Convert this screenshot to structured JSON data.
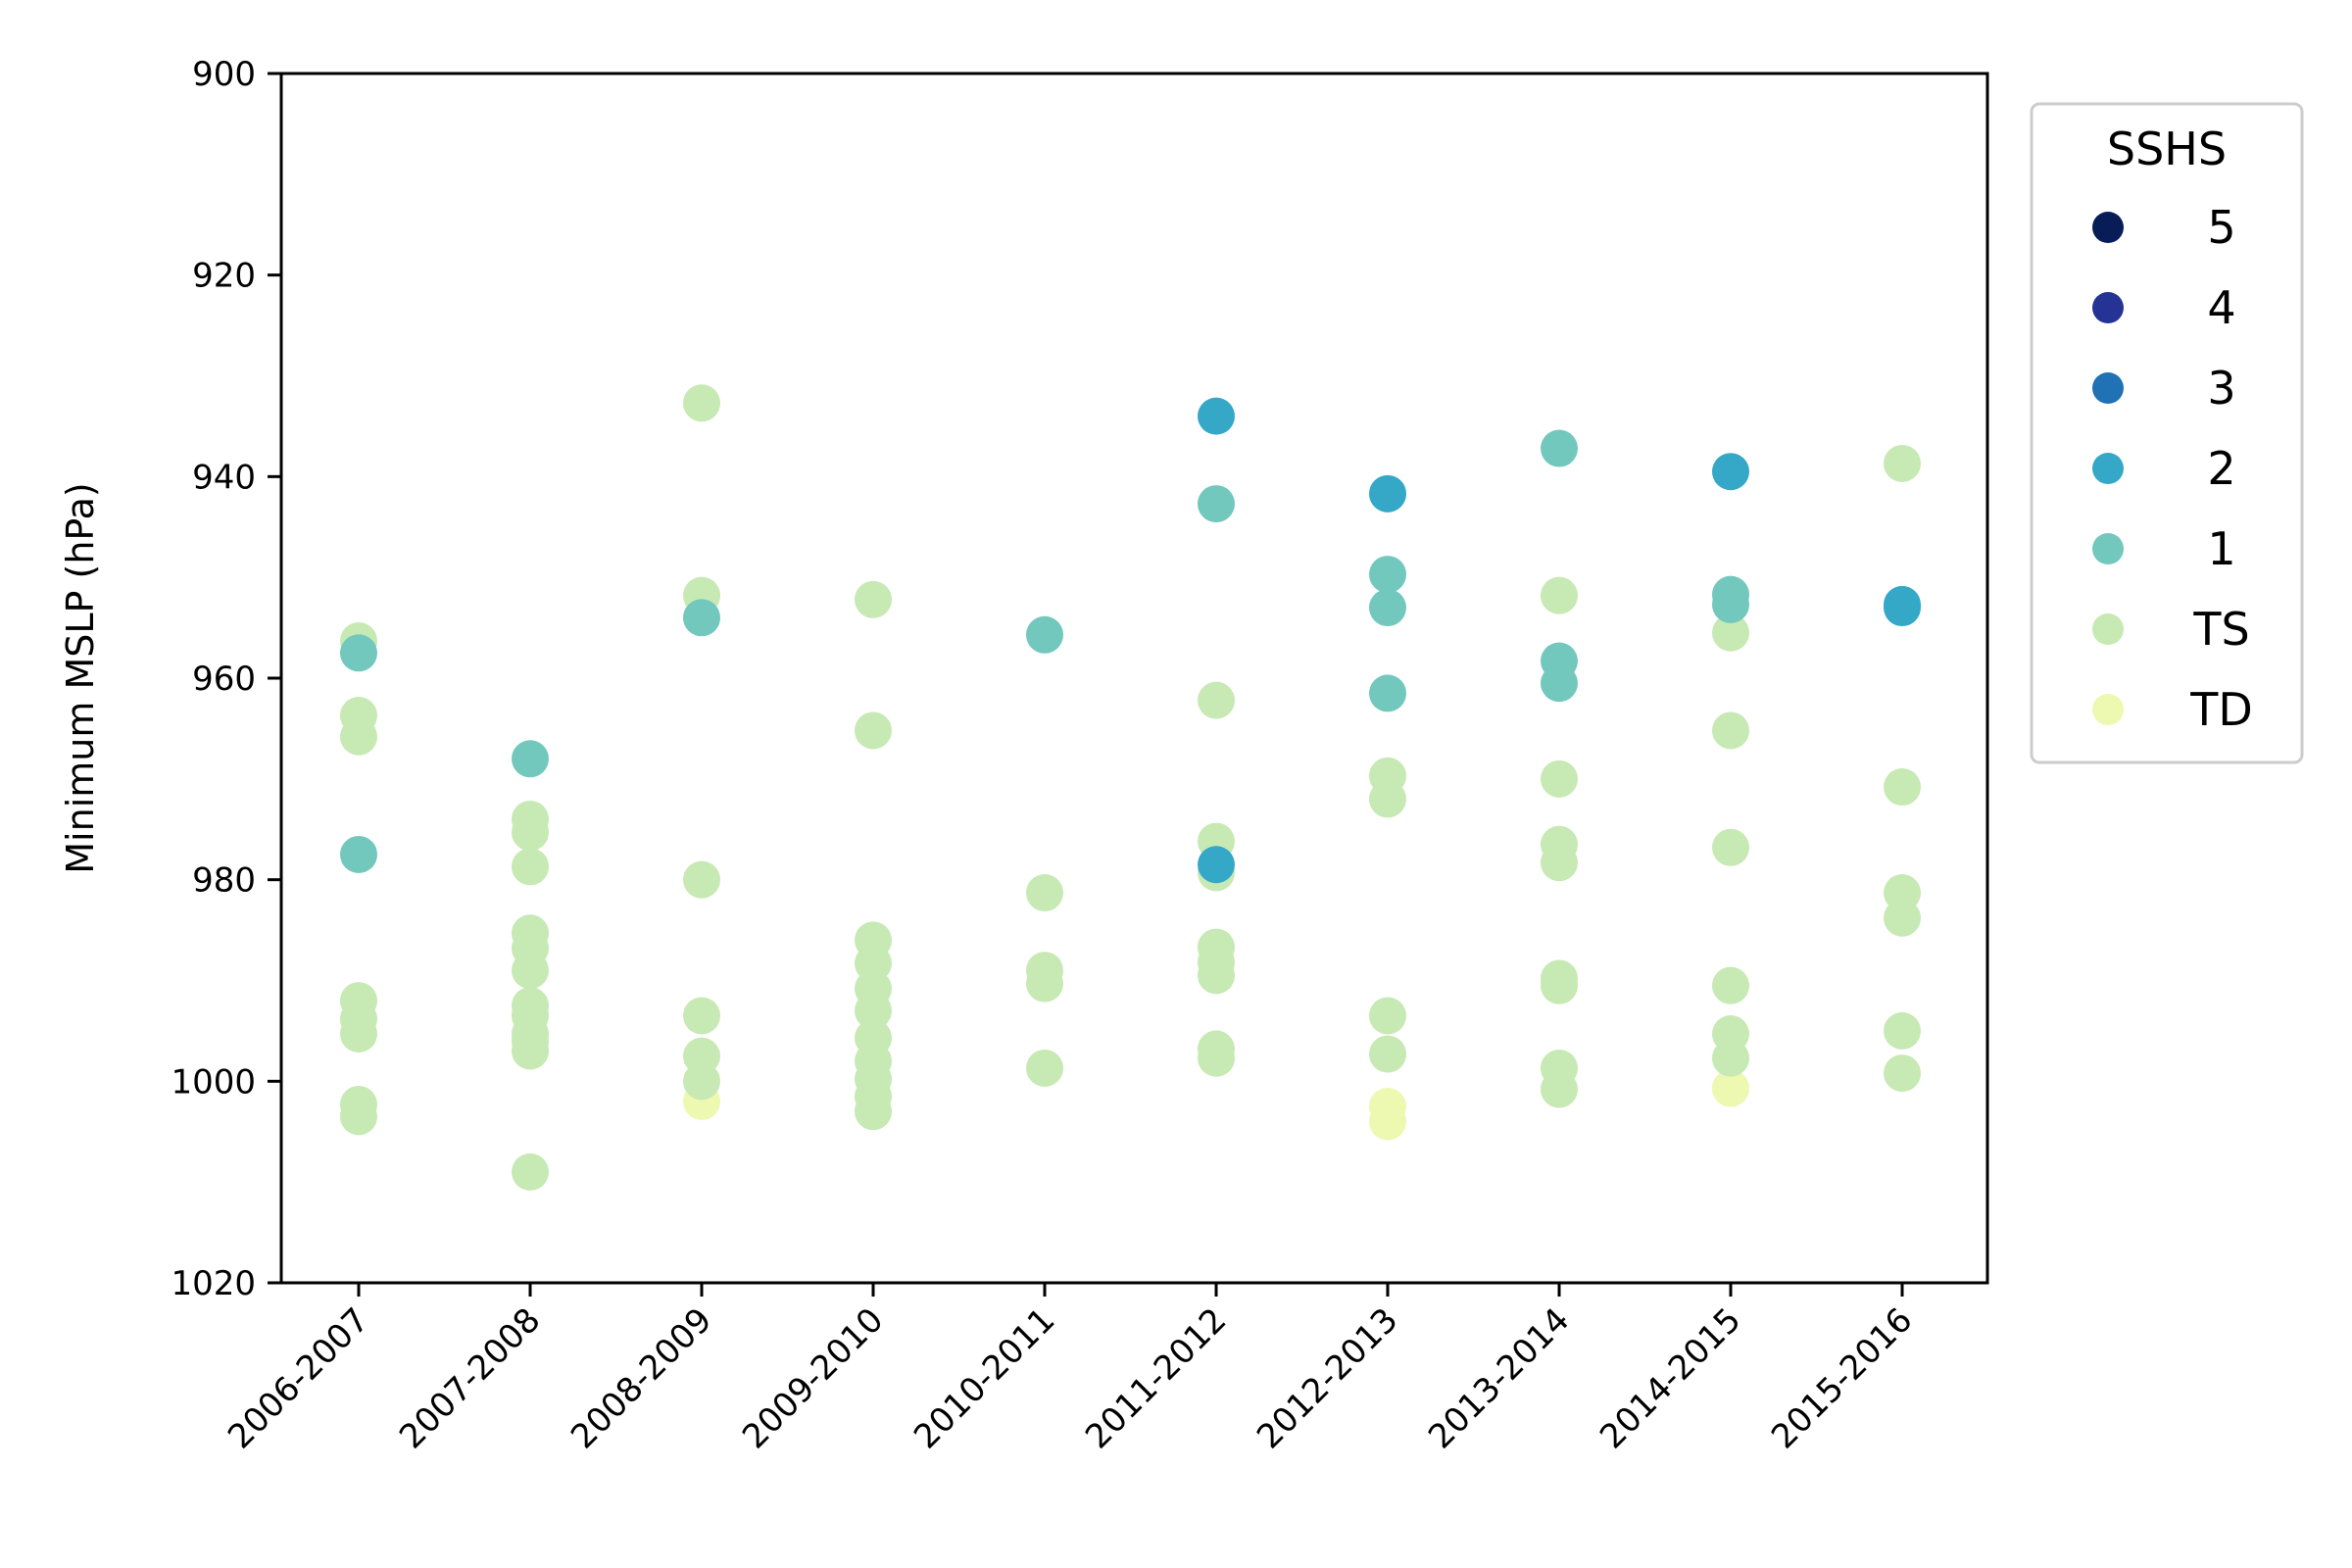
{
  "chart_data": {
    "type": "scatter",
    "title": "",
    "xlabel": "",
    "ylabel": "Minimum MSLP (hPa)",
    "ylim": [
      900,
      1020
    ],
    "y_inverted": true,
    "yticks": [
      "900",
      "920",
      "940",
      "960",
      "980",
      "1000",
      "1020"
    ],
    "categories": [
      "2006-2007",
      "2007-2008",
      "2008-2009",
      "2009-2010",
      "2010-2011",
      "2011-2012",
      "2012-2013",
      "2013-2014",
      "2014-2015",
      "2015-2016"
    ],
    "grid": false,
    "legend": {
      "title": "SSHS",
      "placement": "outside-right",
      "entries": [
        {
          "label": "5",
          "color": "#081d58"
        },
        {
          "label": "4",
          "color": "#253494"
        },
        {
          "label": "3",
          "color": "#2171b5"
        },
        {
          "label": "2",
          "color": "#35a8c7"
        },
        {
          "label": "1",
          "color": "#73c8bd"
        },
        {
          "label": "TS",
          "color": "#c7e9b4"
        },
        {
          "label": "TD",
          "color": "#edf8b1"
        }
      ]
    },
    "series": [
      {
        "name": "2",
        "values": [
          [
            5,
            934
          ],
          [
            6,
            941.7
          ],
          [
            8,
            939.5
          ],
          [
            9,
            952.7
          ],
          [
            9,
            953
          ],
          [
            5,
            978.5
          ]
        ]
      },
      {
        "name": "1",
        "values": [
          [
            0,
            957.5
          ],
          [
            0,
            977.5
          ],
          [
            1,
            968
          ],
          [
            2,
            954
          ],
          [
            4,
            955.7
          ],
          [
            5,
            942.7
          ],
          [
            6,
            949.7
          ],
          [
            6,
            953
          ],
          [
            6,
            961.5
          ],
          [
            7,
            937.2
          ],
          [
            7,
            958.3
          ],
          [
            7,
            960.5
          ],
          [
            8,
            951.7
          ],
          [
            8,
            952.7
          ]
        ]
      },
      {
        "name": "TS",
        "values": [
          [
            0,
            956.3
          ],
          [
            0,
            963.7
          ],
          [
            0,
            965.8
          ],
          [
            0,
            992
          ],
          [
            0,
            993.8
          ],
          [
            0,
            995.3
          ],
          [
            0,
            1002.3
          ],
          [
            0,
            1003.5
          ],
          [
            1,
            974
          ],
          [
            1,
            975.3
          ],
          [
            1,
            978.7
          ],
          [
            1,
            985.3
          ],
          [
            1,
            986.8
          ],
          [
            1,
            989
          ],
          [
            1,
            992.5
          ],
          [
            1,
            993.5
          ],
          [
            1,
            995.3
          ],
          [
            1,
            996
          ],
          [
            1,
            997
          ],
          [
            1,
            1009
          ],
          [
            2,
            932.7
          ],
          [
            2,
            951.8
          ],
          [
            2,
            980
          ],
          [
            2,
            993.5
          ],
          [
            2,
            997.5
          ],
          [
            2,
            1000
          ],
          [
            3,
            952.2
          ],
          [
            3,
            965.2
          ],
          [
            3,
            986
          ],
          [
            3,
            988.3
          ],
          [
            3,
            990.8
          ],
          [
            3,
            993
          ],
          [
            3,
            995.7
          ],
          [
            3,
            998
          ],
          [
            3,
            999.8
          ],
          [
            3,
            1001.5
          ],
          [
            3,
            1003
          ],
          [
            4,
            981.3
          ],
          [
            4,
            989
          ],
          [
            4,
            990.3
          ],
          [
            4,
            998.7
          ],
          [
            5,
            962.2
          ],
          [
            5,
            976.2
          ],
          [
            5,
            979.3
          ],
          [
            5,
            986.7
          ],
          [
            5,
            988.2
          ],
          [
            5,
            989.5
          ],
          [
            5,
            996.8
          ],
          [
            5,
            997.7
          ],
          [
            6,
            969.7
          ],
          [
            6,
            972
          ],
          [
            6,
            993.5
          ],
          [
            6,
            997.3
          ],
          [
            7,
            951.8
          ],
          [
            7,
            970
          ],
          [
            7,
            976.5
          ],
          [
            7,
            978.3
          ],
          [
            7,
            989.8
          ],
          [
            7,
            990.5
          ],
          [
            7,
            998.7
          ],
          [
            7,
            1000.8
          ],
          [
            8,
            955.5
          ],
          [
            8,
            965.2
          ],
          [
            8,
            976.8
          ],
          [
            8,
            990.5
          ],
          [
            8,
            995.3
          ],
          [
            8,
            997.7
          ],
          [
            9,
            938.7
          ],
          [
            9,
            970.8
          ],
          [
            9,
            981.3
          ],
          [
            9,
            983.8
          ],
          [
            9,
            995
          ],
          [
            9,
            999.2
          ]
        ]
      },
      {
        "name": "TD",
        "values": [
          [
            2,
            1002
          ],
          [
            6,
            1002.5
          ],
          [
            6,
            1004
          ],
          [
            8,
            1000.7
          ]
        ]
      }
    ]
  }
}
